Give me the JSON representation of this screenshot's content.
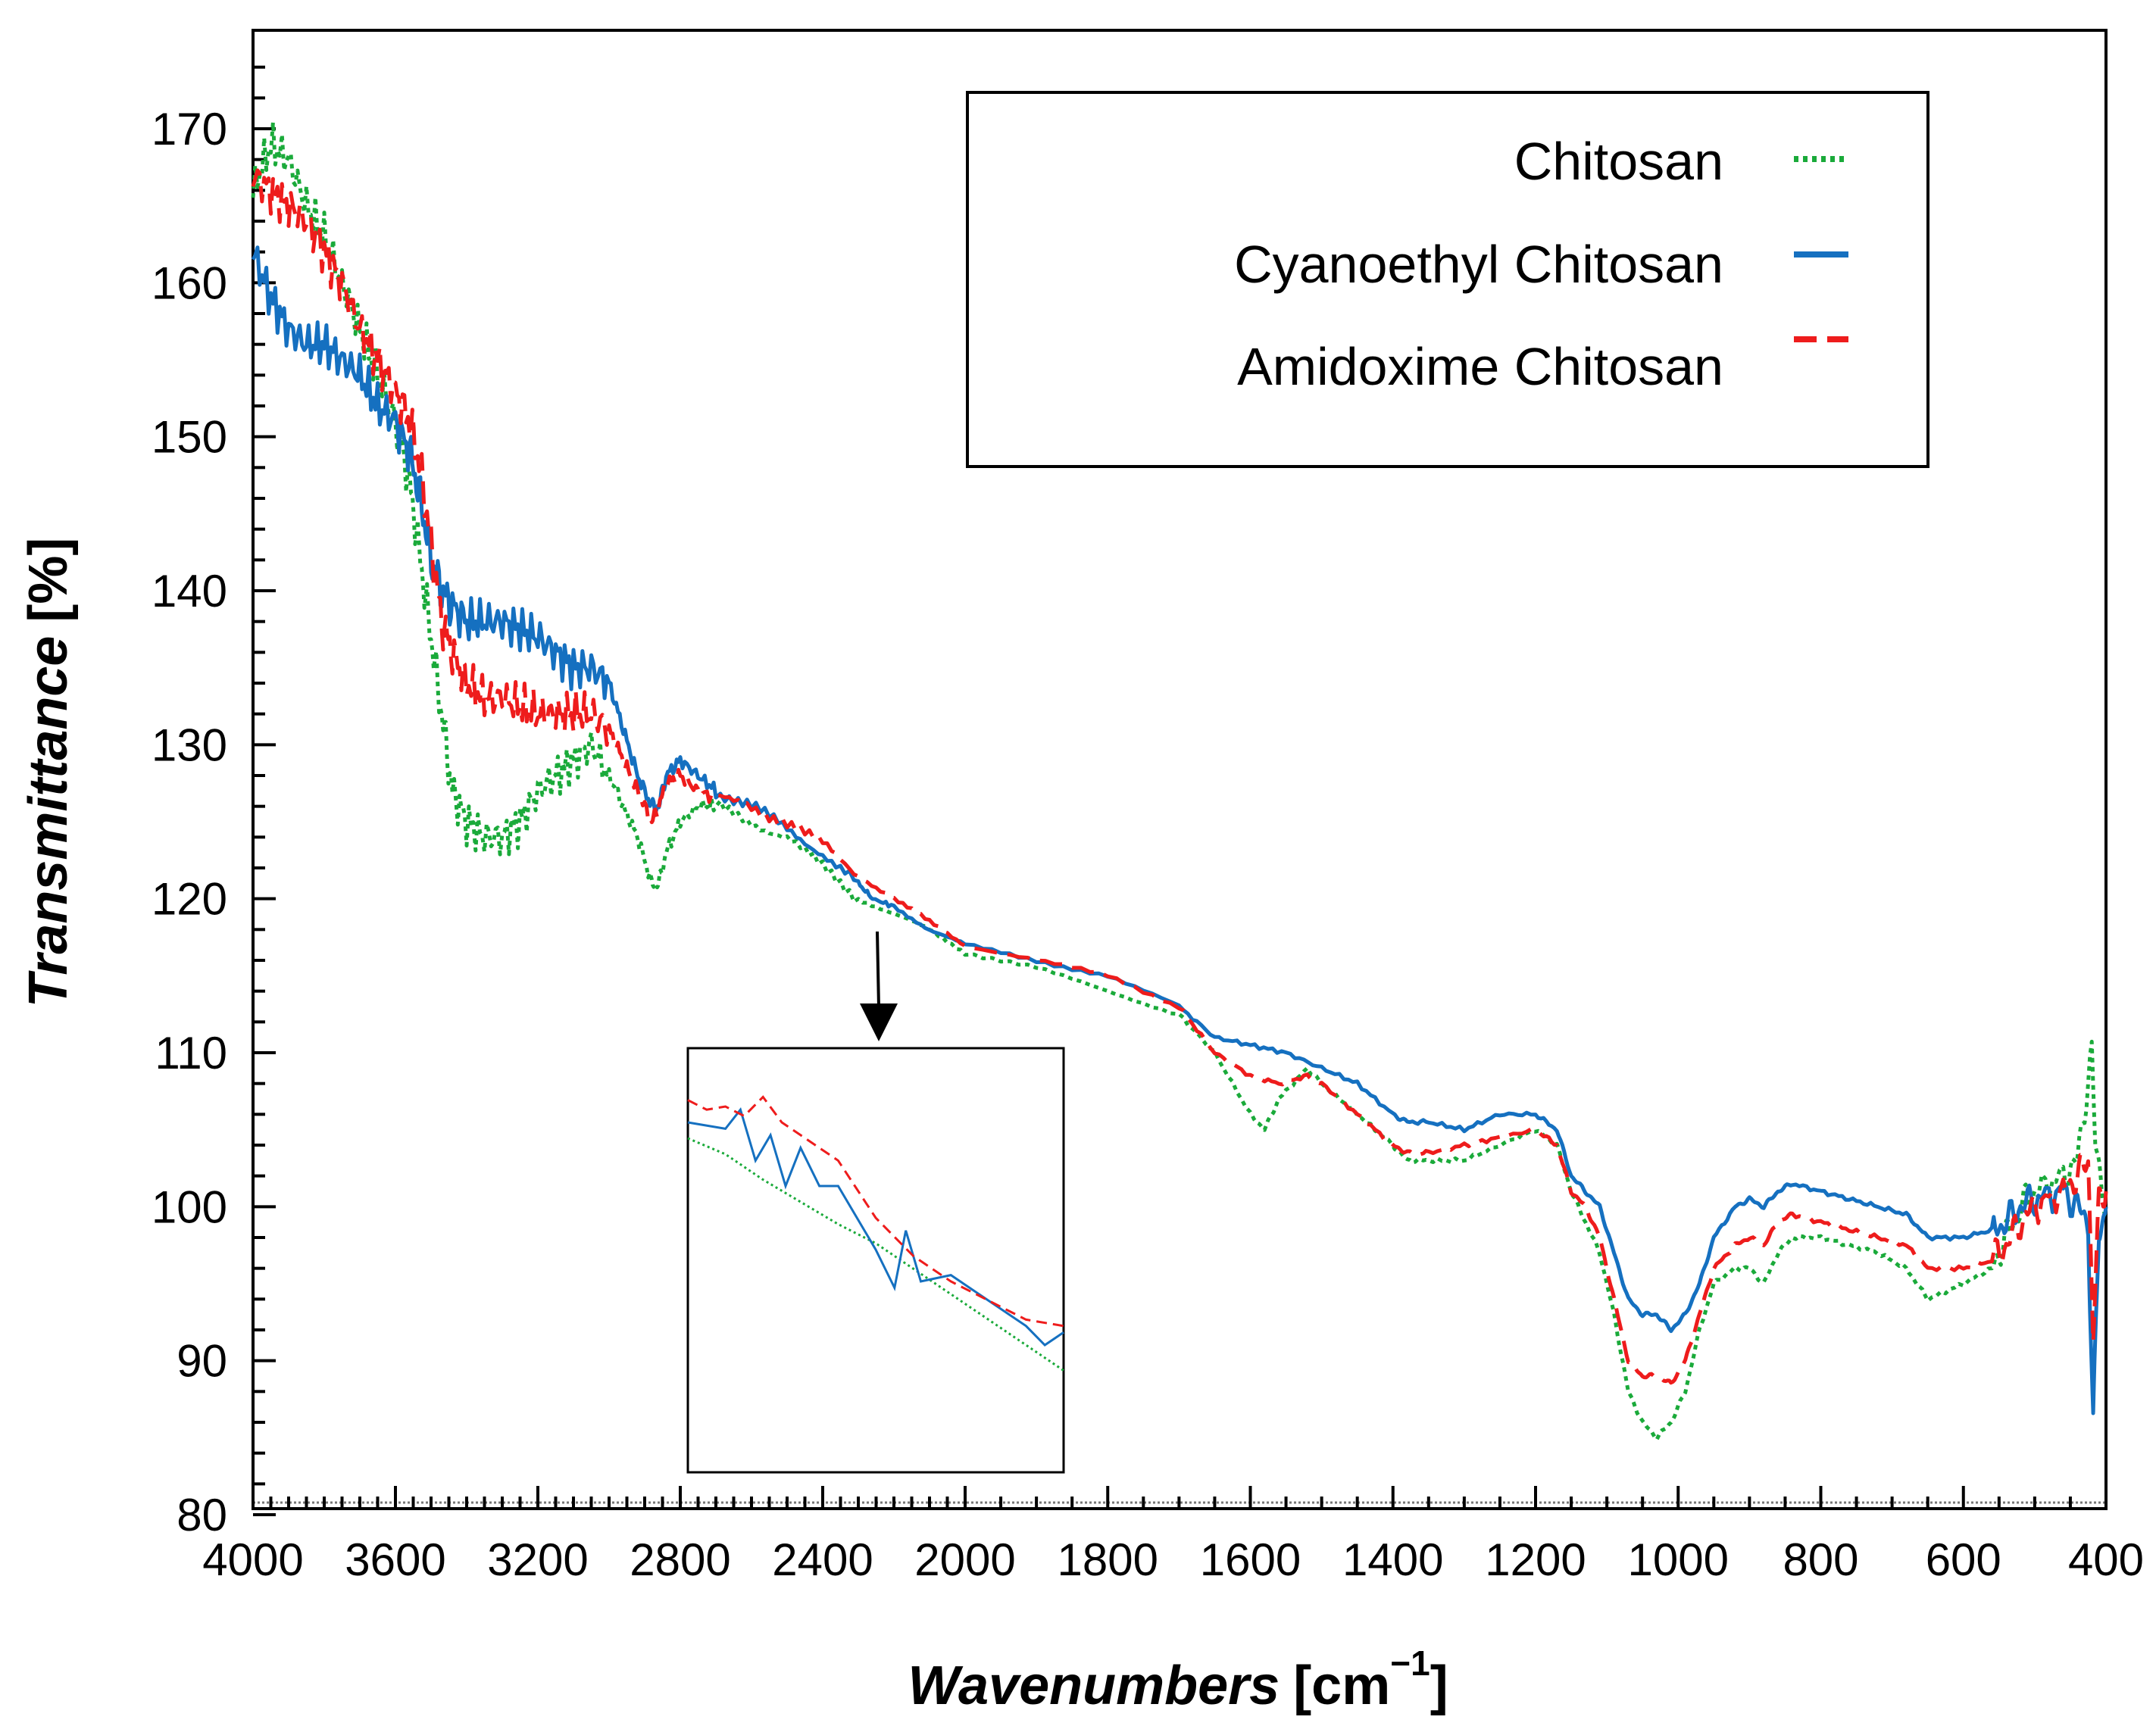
{
  "chart_data": {
    "type": "line",
    "title": "",
    "xlabel": "Wavenumbers",
    "xlabel_unit_open": "[cm",
    "xlabel_unit_sup": "−1",
    "xlabel_unit_close": "]",
    "ylabel": "Transmittance",
    "ylabel_unit": "[%]",
    "xlim": [
      4000,
      400
    ],
    "ylim": [
      80,
      176
    ],
    "x_ticks": [
      4000,
      3600,
      3200,
      2800,
      2400,
      2000,
      1800,
      1600,
      1400,
      1200,
      1000,
      800,
      600,
      400
    ],
    "y_ticks": [
      80,
      90,
      100,
      110,
      120,
      130,
      140,
      150,
      160,
      170
    ],
    "legend_position": "top-right",
    "series": [
      {
        "name": "Chitosan",
        "color": "#1aaa3a",
        "style": "dotted",
        "points": [
          [
            4000,
            166
          ],
          [
            3950,
            169
          ],
          [
            3900,
            168
          ],
          [
            3850,
            165
          ],
          [
            3800,
            163
          ],
          [
            3750,
            160
          ],
          [
            3700,
            157
          ],
          [
            3650,
            154
          ],
          [
            3600,
            151
          ],
          [
            3560,
            147
          ],
          [
            3530,
            142
          ],
          [
            3500,
            137
          ],
          [
            3470,
            132
          ],
          [
            3440,
            127
          ],
          [
            3400,
            125
          ],
          [
            3350,
            124
          ],
          [
            3300,
            124
          ],
          [
            3250,
            125
          ],
          [
            3200,
            127
          ],
          [
            3150,
            128
          ],
          [
            3100,
            129
          ],
          [
            3050,
            130
          ],
          [
            3000,
            128
          ],
          [
            2960,
            126
          ],
          [
            2920,
            124
          ],
          [
            2880,
            121
          ],
          [
            2860,
            121
          ],
          [
            2840,
            123
          ],
          [
            2800,
            125
          ],
          [
            2750,
            126
          ],
          [
            2700,
            126
          ],
          [
            2600,
            125
          ],
          [
            2500,
            124
          ],
          [
            2400,
            122
          ],
          [
            2300,
            120
          ],
          [
            2200,
            119
          ],
          [
            2100,
            118
          ],
          [
            2000,
            116.5
          ],
          [
            1900,
            115.5
          ],
          [
            1800,
            114
          ],
          [
            1700,
            112.5
          ],
          [
            1650,
            110
          ],
          [
            1600,
            106
          ],
          [
            1580,
            105
          ],
          [
            1560,
            107
          ],
          [
            1520,
            109
          ],
          [
            1500,
            108
          ],
          [
            1450,
            106
          ],
          [
            1400,
            104
          ],
          [
            1380,
            103
          ],
          [
            1350,
            103
          ],
          [
            1300,
            103
          ],
          [
            1250,
            104
          ],
          [
            1200,
            105
          ],
          [
            1170,
            104
          ],
          [
            1150,
            101
          ],
          [
            1130,
            99
          ],
          [
            1110,
            97
          ],
          [
            1090,
            93
          ],
          [
            1070,
            88
          ],
          [
            1050,
            86
          ],
          [
            1030,
            85
          ],
          [
            1010,
            86
          ],
          [
            990,
            88
          ],
          [
            970,
            92
          ],
          [
            950,
            95
          ],
          [
            920,
            96
          ],
          [
            900,
            96
          ],
          [
            880,
            95
          ],
          [
            860,
            97
          ],
          [
            840,
            98
          ],
          [
            800,
            98
          ],
          [
            760,
            97.5
          ],
          [
            720,
            97
          ],
          [
            680,
            96
          ],
          [
            650,
            94
          ],
          [
            600,
            95
          ],
          [
            560,
            96
          ],
          [
            540,
            98
          ],
          [
            520,
            100
          ],
          [
            500,
            101
          ],
          [
            460,
            102
          ],
          [
            440,
            103
          ],
          [
            420,
            110
          ],
          [
            415,
            104
          ],
          [
            400,
            100
          ]
        ]
      },
      {
        "name": "Cyanoethyl Chitosan",
        "color": "#1570c0",
        "style": "solid",
        "points": [
          [
            4000,
            162
          ],
          [
            3950,
            159
          ],
          [
            3900,
            157
          ],
          [
            3850,
            156
          ],
          [
            3800,
            156
          ],
          [
            3750,
            155
          ],
          [
            3700,
            154
          ],
          [
            3650,
            152
          ],
          [
            3600,
            151
          ],
          [
            3560,
            149
          ],
          [
            3530,
            146
          ],
          [
            3500,
            142
          ],
          [
            3470,
            140
          ],
          [
            3440,
            139
          ],
          [
            3400,
            138
          ],
          [
            3350,
            138
          ],
          [
            3300,
            138
          ],
          [
            3250,
            137.5
          ],
          [
            3200,
            137
          ],
          [
            3150,
            136
          ],
          [
            3100,
            135
          ],
          [
            3050,
            135
          ],
          [
            3000,
            134
          ],
          [
            2960,
            131
          ],
          [
            2920,
            128
          ],
          [
            2880,
            126
          ],
          [
            2860,
            126
          ],
          [
            2840,
            128
          ],
          [
            2800,
            129
          ],
          [
            2750,
            128
          ],
          [
            2700,
            127
          ],
          [
            2600,
            126
          ],
          [
            2500,
            124.5
          ],
          [
            2400,
            123
          ],
          [
            2300,
            121
          ],
          [
            2260,
            120
          ],
          [
            2200,
            119.5
          ],
          [
            2100,
            118
          ],
          [
            2000,
            117
          ],
          [
            1900,
            116
          ],
          [
            1800,
            115
          ],
          [
            1700,
            113
          ],
          [
            1650,
            111
          ],
          [
            1600,
            110.5
          ],
          [
            1550,
            110
          ],
          [
            1500,
            109
          ],
          [
            1450,
            108
          ],
          [
            1400,
            106
          ],
          [
            1380,
            105.5
          ],
          [
            1350,
            105.5
          ],
          [
            1300,
            105
          ],
          [
            1250,
            106
          ],
          [
            1200,
            106
          ],
          [
            1170,
            105
          ],
          [
            1150,
            102
          ],
          [
            1130,
            101
          ],
          [
            1110,
            100
          ],
          [
            1090,
            97
          ],
          [
            1070,
            94
          ],
          [
            1050,
            93
          ],
          [
            1030,
            93
          ],
          [
            1010,
            92
          ],
          [
            990,
            93
          ],
          [
            970,
            95
          ],
          [
            950,
            98
          ],
          [
            920,
            100
          ],
          [
            900,
            100.5
          ],
          [
            880,
            100
          ],
          [
            860,
            101
          ],
          [
            840,
            101.5
          ],
          [
            800,
            101
          ],
          [
            760,
            100.5
          ],
          [
            720,
            100
          ],
          [
            680,
            99.5
          ],
          [
            650,
            98
          ],
          [
            600,
            98
          ],
          [
            560,
            98.5
          ],
          [
            540,
            99
          ],
          [
            520,
            100
          ],
          [
            500,
            100.5
          ],
          [
            460,
            101
          ],
          [
            440,
            100
          ],
          [
            425,
            99
          ],
          [
            418,
            86
          ],
          [
            410,
            98
          ],
          [
            400,
            100
          ]
        ]
      },
      {
        "name": "Amidoxime Chitosan",
        "color": "#ee1c1c",
        "style": "dashed",
        "points": [
          [
            4000,
            167
          ],
          [
            3950,
            166
          ],
          [
            3900,
            165
          ],
          [
            3850,
            164
          ],
          [
            3800,
            162
          ],
          [
            3750,
            160
          ],
          [
            3700,
            157
          ],
          [
            3650,
            155
          ],
          [
            3600,
            153
          ],
          [
            3560,
            151
          ],
          [
            3530,
            148
          ],
          [
            3500,
            143
          ],
          [
            3470,
            138
          ],
          [
            3440,
            136
          ],
          [
            3400,
            134
          ],
          [
            3350,
            133
          ],
          [
            3300,
            133
          ],
          [
            3250,
            132.5
          ],
          [
            3200,
            132
          ],
          [
            3150,
            132
          ],
          [
            3100,
            132
          ],
          [
            3050,
            132
          ],
          [
            3000,
            131
          ],
          [
            2960,
            129
          ],
          [
            2920,
            127
          ],
          [
            2880,
            125
          ],
          [
            2860,
            126
          ],
          [
            2840,
            127.5
          ],
          [
            2800,
            128
          ],
          [
            2750,
            127
          ],
          [
            2700,
            126.5
          ],
          [
            2600,
            126
          ],
          [
            2500,
            125
          ],
          [
            2400,
            123.5
          ],
          [
            2300,
            121.5
          ],
          [
            2200,
            120
          ],
          [
            2100,
            118.5
          ],
          [
            2000,
            117
          ],
          [
            1900,
            116
          ],
          [
            1800,
            115
          ],
          [
            1700,
            113
          ],
          [
            1650,
            110
          ],
          [
            1600,
            108.5
          ],
          [
            1560,
            108
          ],
          [
            1520,
            108.5
          ],
          [
            1500,
            108
          ],
          [
            1450,
            106
          ],
          [
            1400,
            104
          ],
          [
            1380,
            103.5
          ],
          [
            1350,
            103.5
          ],
          [
            1300,
            104
          ],
          [
            1250,
            104.5
          ],
          [
            1200,
            105
          ],
          [
            1170,
            104
          ],
          [
            1150,
            101
          ],
          [
            1130,
            100
          ],
          [
            1110,
            98
          ],
          [
            1090,
            94
          ],
          [
            1070,
            90
          ],
          [
            1050,
            89
          ],
          [
            1030,
            89
          ],
          [
            1010,
            88.5
          ],
          [
            990,
            90
          ],
          [
            970,
            93
          ],
          [
            950,
            96
          ],
          [
            920,
            97.5
          ],
          [
            900,
            98
          ],
          [
            880,
            97.5
          ],
          [
            860,
            99
          ],
          [
            840,
            99.5
          ],
          [
            800,
            99
          ],
          [
            760,
            98.5
          ],
          [
            720,
            98
          ],
          [
            680,
            97.5
          ],
          [
            650,
            96
          ],
          [
            600,
            96
          ],
          [
            560,
            96.5
          ],
          [
            540,
            97.5
          ],
          [
            520,
            99
          ],
          [
            500,
            100
          ],
          [
            460,
            101
          ],
          [
            440,
            102
          ],
          [
            425,
            103
          ],
          [
            418,
            92
          ],
          [
            410,
            100
          ],
          [
            400,
            101
          ]
        ]
      }
    ],
    "inset": {
      "description_range": [
        2200,
        2400
      ],
      "points": {
        "Chitosan": [
          [
            0,
            0.15
          ],
          [
            0.1,
            0.2
          ],
          [
            0.2,
            0.28
          ],
          [
            0.3,
            0.35
          ],
          [
            0.4,
            0.42
          ],
          [
            0.5,
            0.48
          ],
          [
            0.6,
            0.56
          ],
          [
            0.7,
            0.64
          ],
          [
            0.8,
            0.72
          ],
          [
            0.9,
            0.8
          ],
          [
            1,
            0.88
          ]
        ],
        "Cyanoethyl Chitosan": [
          [
            0,
            0.1
          ],
          [
            0.1,
            0.12
          ],
          [
            0.14,
            0.06
          ],
          [
            0.18,
            0.22
          ],
          [
            0.22,
            0.14
          ],
          [
            0.26,
            0.3
          ],
          [
            0.3,
            0.18
          ],
          [
            0.35,
            0.3
          ],
          [
            0.4,
            0.3
          ],
          [
            0.45,
            0.4
          ],
          [
            0.5,
            0.5
          ],
          [
            0.55,
            0.62
          ],
          [
            0.58,
            0.44
          ],
          [
            0.62,
            0.6
          ],
          [
            0.7,
            0.58
          ],
          [
            0.8,
            0.66
          ],
          [
            0.9,
            0.74
          ],
          [
            0.95,
            0.8
          ],
          [
            1,
            0.76
          ]
        ],
        "Amidoxime Chitosan": [
          [
            0,
            0.03
          ],
          [
            0.05,
            0.06
          ],
          [
            0.1,
            0.05
          ],
          [
            0.15,
            0.08
          ],
          [
            0.2,
            0.02
          ],
          [
            0.25,
            0.1
          ],
          [
            0.3,
            0.14
          ],
          [
            0.4,
            0.22
          ],
          [
            0.5,
            0.4
          ],
          [
            0.6,
            0.52
          ],
          [
            0.7,
            0.6
          ],
          [
            0.8,
            0.66
          ],
          [
            0.9,
            0.72
          ],
          [
            1,
            0.74
          ]
        ]
      }
    }
  }
}
